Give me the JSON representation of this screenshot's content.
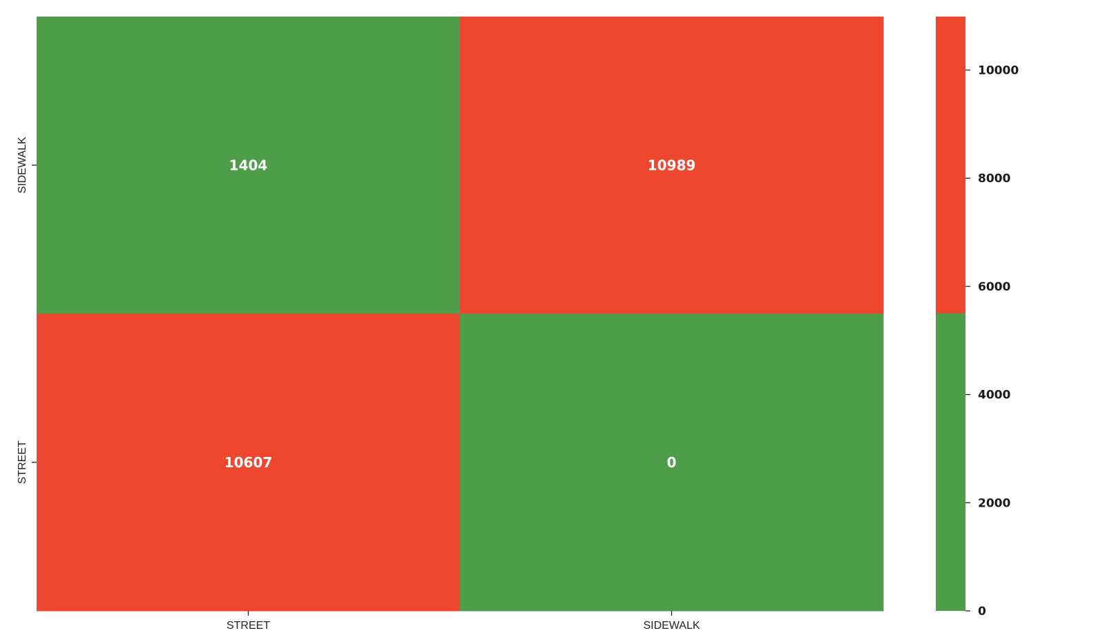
{
  "chart_data": {
    "type": "heatmap",
    "title": "",
    "xlabel": "",
    "ylabel": "",
    "x_categories": [
      "STREET",
      "SIDEWALK"
    ],
    "y_categories": [
      "SIDEWALK",
      "STREET"
    ],
    "values": [
      [
        1404,
        10989
      ],
      [
        10607,
        0
      ]
    ],
    "colormap": {
      "type": "two-color-threshold",
      "threshold": 5500,
      "low_color": "#4e9d48",
      "high_color": "#ee472f"
    },
    "colorbar": {
      "range": [
        0,
        10989
      ],
      "ticks": [
        0,
        2000,
        4000,
        6000,
        8000,
        10000
      ],
      "tick_labels": [
        "0",
        "2000",
        "4000",
        "6000",
        "8000",
        "10000"
      ],
      "position": "right"
    },
    "grid": false,
    "annotations": true
  }
}
